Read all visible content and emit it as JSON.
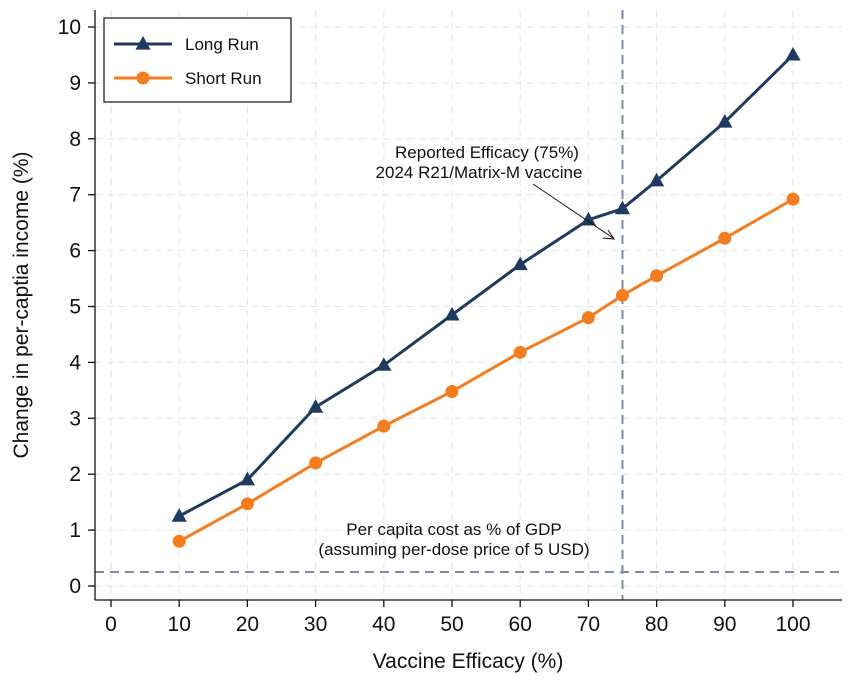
{
  "chart_data": {
    "type": "line",
    "xlabel": "Vaccine Efficacy (%)",
    "ylabel": "Change in per-captia income (%)",
    "xlim": [
      0,
      100
    ],
    "ylim": [
      0,
      10
    ],
    "xticks": [
      "0",
      "10",
      "20",
      "30",
      "40",
      "50",
      "60",
      "70",
      "80",
      "90",
      "100"
    ],
    "yticks": [
      "0",
      "1",
      "2",
      "3",
      "4",
      "5",
      "6",
      "7",
      "8",
      "9",
      "10"
    ],
    "grid": true,
    "legend_position": "top-left",
    "series": [
      {
        "name": "Long Run",
        "color": "#1f3a5f",
        "marker": "triangle",
        "x": [
          10,
          20,
          30,
          40,
          50,
          60,
          70,
          75,
          80,
          90,
          100
        ],
        "y": [
          1.25,
          1.9,
          3.2,
          3.95,
          4.85,
          5.75,
          6.55,
          6.75,
          7.25,
          8.3,
          9.5
        ]
      },
      {
        "name": "Short Run",
        "color": "#f47d20",
        "marker": "circle",
        "x": [
          10,
          20,
          30,
          40,
          50,
          60,
          70,
          75,
          80,
          90,
          100
        ],
        "y": [
          0.8,
          1.47,
          2.2,
          2.86,
          3.48,
          4.18,
          4.8,
          5.2,
          5.55,
          6.22,
          6.92
        ]
      }
    ],
    "reference_lines": {
      "vertical_x": 75,
      "horizontal_y": 0.25,
      "color": "#7a8ea8"
    },
    "annotations": {
      "efficacy_line1": "Reported Efficacy (75%)",
      "efficacy_line2": "2024 R21/Matrix-M vaccine",
      "cost_line1": "Per capita cost as % of GDP",
      "cost_line2": "(assuming per-dose price of 5 USD)"
    }
  }
}
